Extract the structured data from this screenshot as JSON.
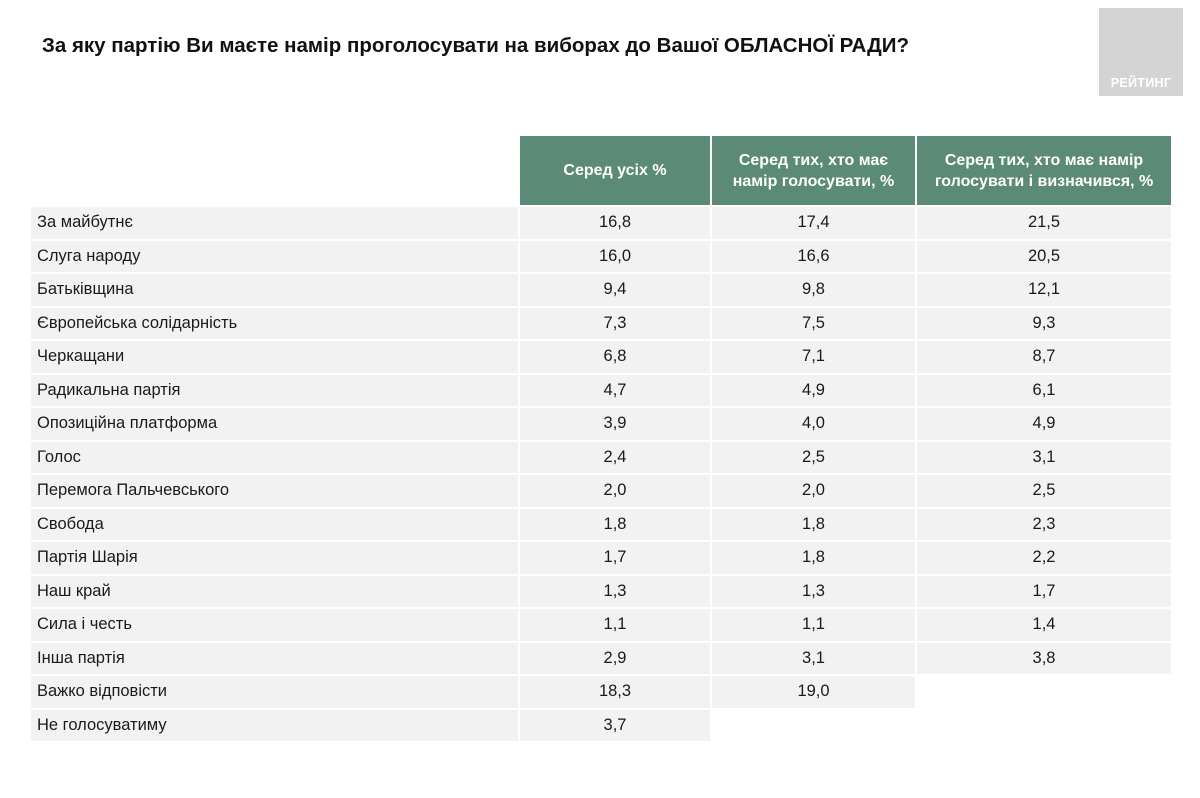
{
  "title": "За яку партію Ви маєте намір проголосувати на виборах до Вашої ОБЛАСНОЇ РАДИ?",
  "logo_text": "РЕЙТИНГ",
  "colors": {
    "header_bg": "#5b8a77",
    "row_bg": "#f2f2f2",
    "logo_bg": "#d4d4d4"
  },
  "chart_data": {
    "type": "table",
    "columns": [
      "Серед усіх %",
      "Серед тих, хто має намір голосувати, %",
      "Серед тих, хто має намір голосувати і визначився, %"
    ],
    "rows": [
      {
        "label": "За майбутнє",
        "values": [
          "16,8",
          "17,4",
          "21,5"
        ]
      },
      {
        "label": "Слуга народу",
        "values": [
          "16,0",
          "16,6",
          "20,5"
        ]
      },
      {
        "label": "Батьківщина",
        "values": [
          "9,4",
          "9,8",
          "12,1"
        ]
      },
      {
        "label": "Європейська солідарність",
        "values": [
          "7,3",
          "7,5",
          "9,3"
        ]
      },
      {
        "label": "Черкащани",
        "values": [
          "6,8",
          "7,1",
          "8,7"
        ]
      },
      {
        "label": "Радикальна партія",
        "values": [
          "4,7",
          "4,9",
          "6,1"
        ]
      },
      {
        "label": "Опозиційна платформа",
        "values": [
          "3,9",
          "4,0",
          "4,9"
        ]
      },
      {
        "label": "Голос",
        "values": [
          "2,4",
          "2,5",
          "3,1"
        ]
      },
      {
        "label": "Перемога Пальчевського",
        "values": [
          "2,0",
          "2,0",
          "2,5"
        ]
      },
      {
        "label": "Свобода",
        "values": [
          "1,8",
          "1,8",
          "2,3"
        ]
      },
      {
        "label": "Партія Шарія",
        "values": [
          "1,7",
          "1,8",
          "2,2"
        ]
      },
      {
        "label": "Наш край",
        "values": [
          "1,3",
          "1,3",
          "1,7"
        ]
      },
      {
        "label": "Сила і честь",
        "values": [
          "1,1",
          "1,1",
          "1,4"
        ]
      },
      {
        "label": "Інша партія",
        "values": [
          "2,9",
          "3,1",
          "3,8"
        ]
      },
      {
        "label": "Важко відповісти",
        "values": [
          "18,3",
          "19,0"
        ]
      },
      {
        "label": "Не голосуватиму",
        "values": [
          "3,7"
        ]
      }
    ]
  }
}
